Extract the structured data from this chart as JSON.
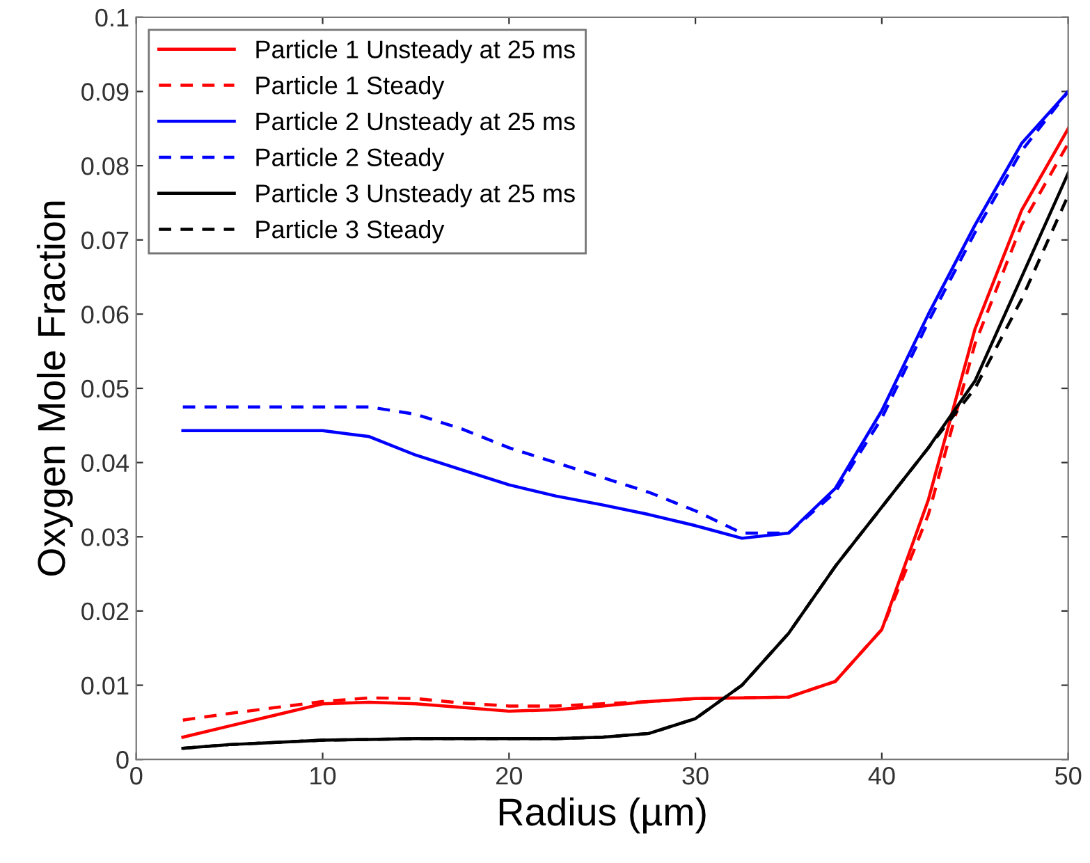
{
  "chart_data": {
    "type": "line",
    "xlabel": "Radius (µm)",
    "ylabel": "Oxygen Mole Fraction",
    "x": [
      2.5,
      5,
      7.5,
      10,
      12.5,
      15,
      17.5,
      20,
      22.5,
      25,
      27.5,
      30,
      32.5,
      35,
      37.5,
      40,
      42.5,
      45,
      47.5,
      50
    ],
    "xlim": [
      0,
      50
    ],
    "xticks": [
      0,
      10,
      20,
      30,
      40,
      50
    ],
    "ylim": [
      0,
      0.1
    ],
    "yticks": [
      0,
      0.01,
      0.02,
      0.03,
      0.04,
      0.05,
      0.06,
      0.07,
      0.08,
      0.09,
      0.1
    ],
    "grid": false,
    "legend": "top left",
    "marker": "none",
    "series": [
      {
        "name": "Particle 1 Unsteady at 25 ms",
        "color": "#ff0000",
        "line_style": "solid",
        "values": [
          0.003,
          0.0045,
          0.006,
          0.0075,
          0.0077,
          0.0075,
          0.007,
          0.0065,
          0.0067,
          0.0072,
          0.0078,
          0.0082,
          0.0083,
          0.0084,
          0.0105,
          0.0175,
          0.035,
          0.058,
          0.074,
          0.085
        ]
      },
      {
        "name": "Particle 1 Steady",
        "color": "#ff0000",
        "line_style": "dashed",
        "values": [
          0.0053,
          0.0062,
          0.007,
          0.0078,
          0.0083,
          0.0082,
          0.0076,
          0.0072,
          0.0072,
          0.0075,
          0.0078,
          0.0082,
          0.0083,
          0.0084,
          0.0105,
          0.0175,
          0.033,
          0.056,
          0.072,
          0.083
        ]
      },
      {
        "name": "Particle 2 Unsteady at 25 ms",
        "color": "#0000ff",
        "line_style": "solid",
        "values": [
          0.0443,
          0.0443,
          0.0443,
          0.0443,
          0.0435,
          0.041,
          0.039,
          0.037,
          0.0355,
          0.0343,
          0.033,
          0.0315,
          0.0298,
          0.0305,
          0.0365,
          0.047,
          0.06,
          0.072,
          0.083,
          0.09
        ]
      },
      {
        "name": "Particle 2 Steady",
        "color": "#0000ff",
        "line_style": "dashed",
        "values": [
          0.0475,
          0.0475,
          0.0475,
          0.0475,
          0.0475,
          0.0465,
          0.0445,
          0.042,
          0.04,
          0.038,
          0.036,
          0.0335,
          0.0305,
          0.0305,
          0.036,
          0.046,
          0.059,
          0.071,
          0.082,
          0.09
        ]
      },
      {
        "name": "Particle 3 Unsteady at 25 ms",
        "color": "#000000",
        "line_style": "solid",
        "values": [
          0.0015,
          0.002,
          0.0023,
          0.0026,
          0.0027,
          0.0028,
          0.0028,
          0.0028,
          0.0028,
          0.003,
          0.0035,
          0.0055,
          0.01,
          0.017,
          0.026,
          0.034,
          0.042,
          0.051,
          0.065,
          0.079
        ]
      },
      {
        "name": "Particle 3 Steady",
        "color": "#000000",
        "line_style": "dashed",
        "values": [
          0.0015,
          0.002,
          0.0023,
          0.0026,
          0.0027,
          0.0028,
          0.0028,
          0.0028,
          0.0028,
          0.003,
          0.0035,
          0.0055,
          0.01,
          0.017,
          0.026,
          0.034,
          0.042,
          0.05,
          0.062,
          0.076
        ]
      }
    ]
  }
}
